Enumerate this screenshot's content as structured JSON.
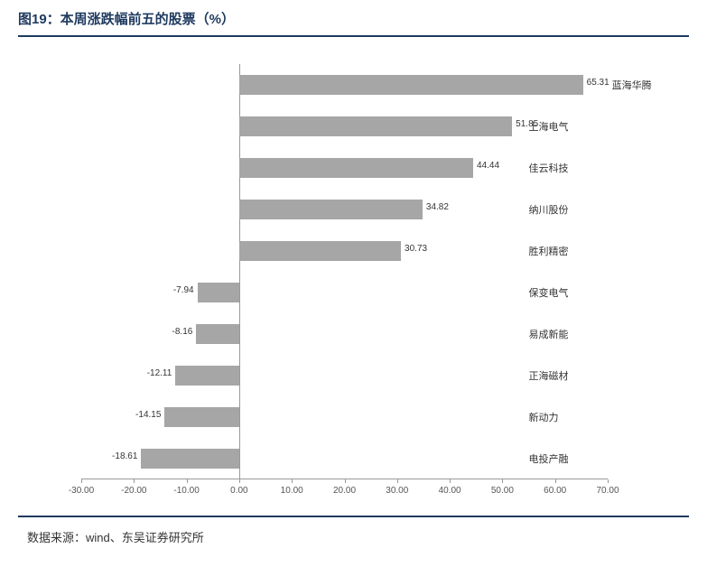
{
  "title": "图19：本周涨跌幅前五的股票（%）",
  "source": "数据来源：wind、东吴证券研究所",
  "chart": {
    "type": "bar-horizontal",
    "xmin": -30,
    "xmax": 70,
    "xtick_step": 10,
    "xtick_decimals": 2,
    "bar_color": "#a6a6a6",
    "axis_color": "#999999",
    "text_color": "#333333",
    "value_fontsize": 10,
    "label_fontsize": 11,
    "tick_fontsize": 10,
    "bars": [
      {
        "label": "蓝海华腾",
        "value": 65.31
      },
      {
        "label": "上海电气",
        "value": 51.85
      },
      {
        "label": "佳云科技",
        "value": 44.44
      },
      {
        "label": "纳川股份",
        "value": 34.82
      },
      {
        "label": "胜利精密",
        "value": 30.73
      },
      {
        "label": "保变电气",
        "value": -7.94
      },
      {
        "label": "易成新能",
        "value": -8.16
      },
      {
        "label": "正海磁材",
        "value": -12.11
      },
      {
        "label": "新动力",
        "value": -14.15
      },
      {
        "label": "电投产融",
        "value": -18.61
      }
    ]
  },
  "colors": {
    "title": "#1f3a5f",
    "rule": "#1f3a5f",
    "background": "#ffffff"
  }
}
